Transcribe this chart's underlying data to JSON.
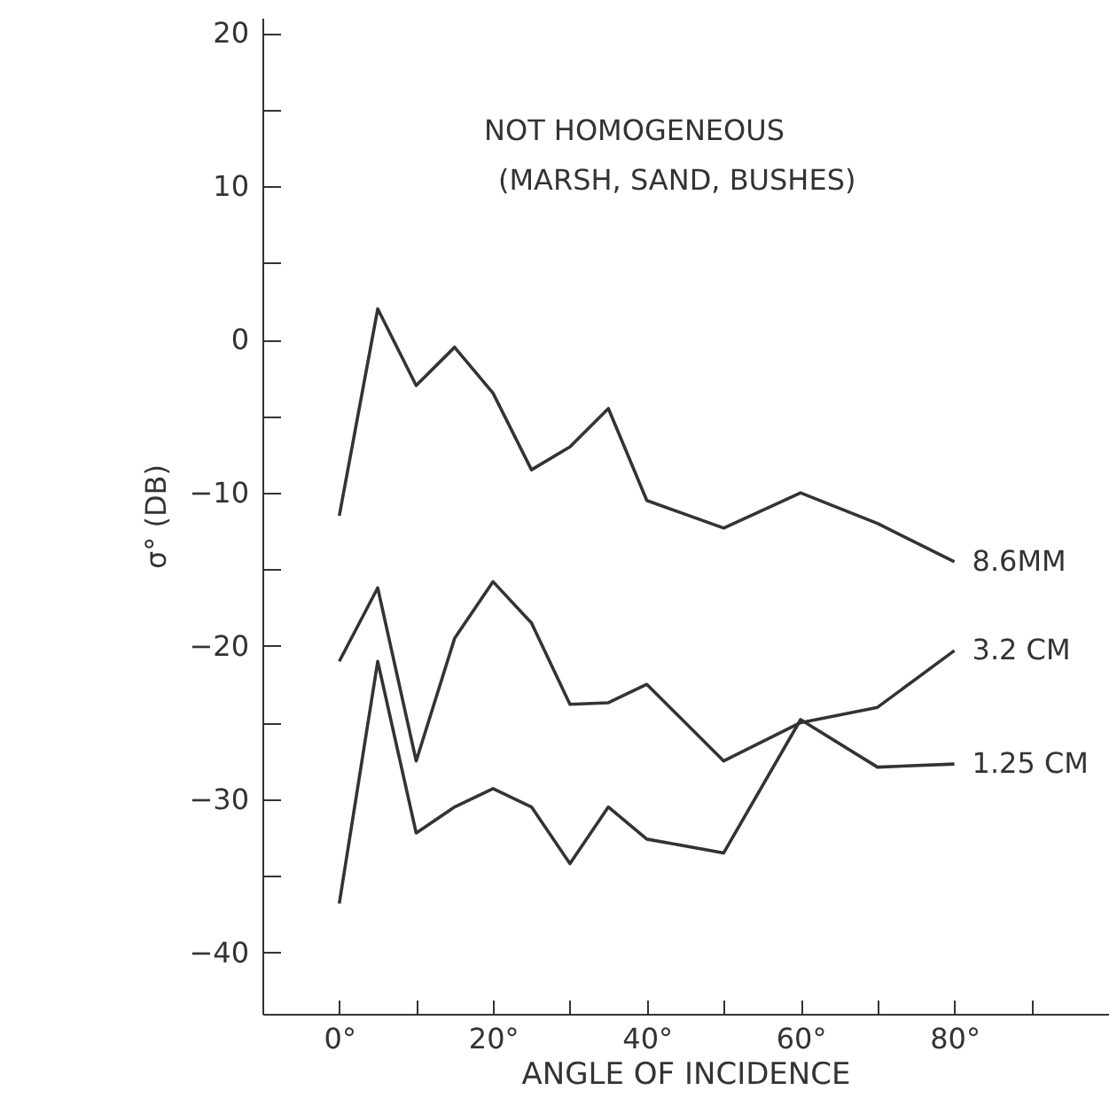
{
  "chart_data": {
    "type": "line",
    "xlabel": "ANGLE OF INCIDENCE",
    "ylabel": "σ° (DB)",
    "annotations": [
      "NOT HOMOGENEOUS",
      "(MARSH, SAND, BUSHES)"
    ],
    "x": [
      0,
      5,
      10,
      15,
      20,
      25,
      30,
      35,
      40,
      50,
      60,
      70,
      80
    ],
    "series": [
      {
        "name": "8.6MM",
        "color": "#333333",
        "values": [
          -11.5,
          2,
          -3,
          -0.5,
          -3.5,
          -8.5,
          -7,
          -4.5,
          -10.5,
          -12.3,
          -10,
          -12,
          -14.5
        ]
      },
      {
        "name": "3.2 CM",
        "color": "#333333",
        "values": [
          -21,
          -16.2,
          -27.5,
          -19.5,
          -15.8,
          -18.5,
          -23.8,
          -23.7,
          -22.5,
          -27.5,
          -25,
          -24,
          -20.3
        ]
      },
      {
        "name": "1.25 CM",
        "color": "#333333",
        "values": [
          -36.8,
          -21,
          -32.2,
          -30.5,
          -29.3,
          -30.5,
          -34.2,
          -30.5,
          -32.6,
          -33.5,
          -24.8,
          -27.9,
          -27.7
        ]
      }
    ],
    "xlim": [
      -10,
      100
    ],
    "xticks": [
      {
        "value": 0,
        "label": "0°"
      },
      {
        "value": 10,
        "label": null
      },
      {
        "value": 20,
        "label": "20°"
      },
      {
        "value": 30,
        "label": null
      },
      {
        "value": 40,
        "label": "40°"
      },
      {
        "value": 50,
        "label": null
      },
      {
        "value": 60,
        "label": "60°"
      },
      {
        "value": 70,
        "label": null
      },
      {
        "value": 80,
        "label": "80°"
      },
      {
        "value": 90,
        "label": null
      }
    ],
    "ylim": [
      -44,
      21
    ],
    "yticks": [
      20,
      {
        "value": 15,
        "label": null
      },
      10,
      {
        "value": 5,
        "label": null
      },
      0,
      {
        "value": -5,
        "label": null
      },
      -10,
      {
        "value": -15,
        "label": null
      },
      -20,
      {
        "value": -25,
        "label": null
      },
      -30,
      {
        "value": -35,
        "label": null
      },
      -40
    ],
    "grid": false,
    "legend": false,
    "marker": "none",
    "line_style": "solid"
  }
}
